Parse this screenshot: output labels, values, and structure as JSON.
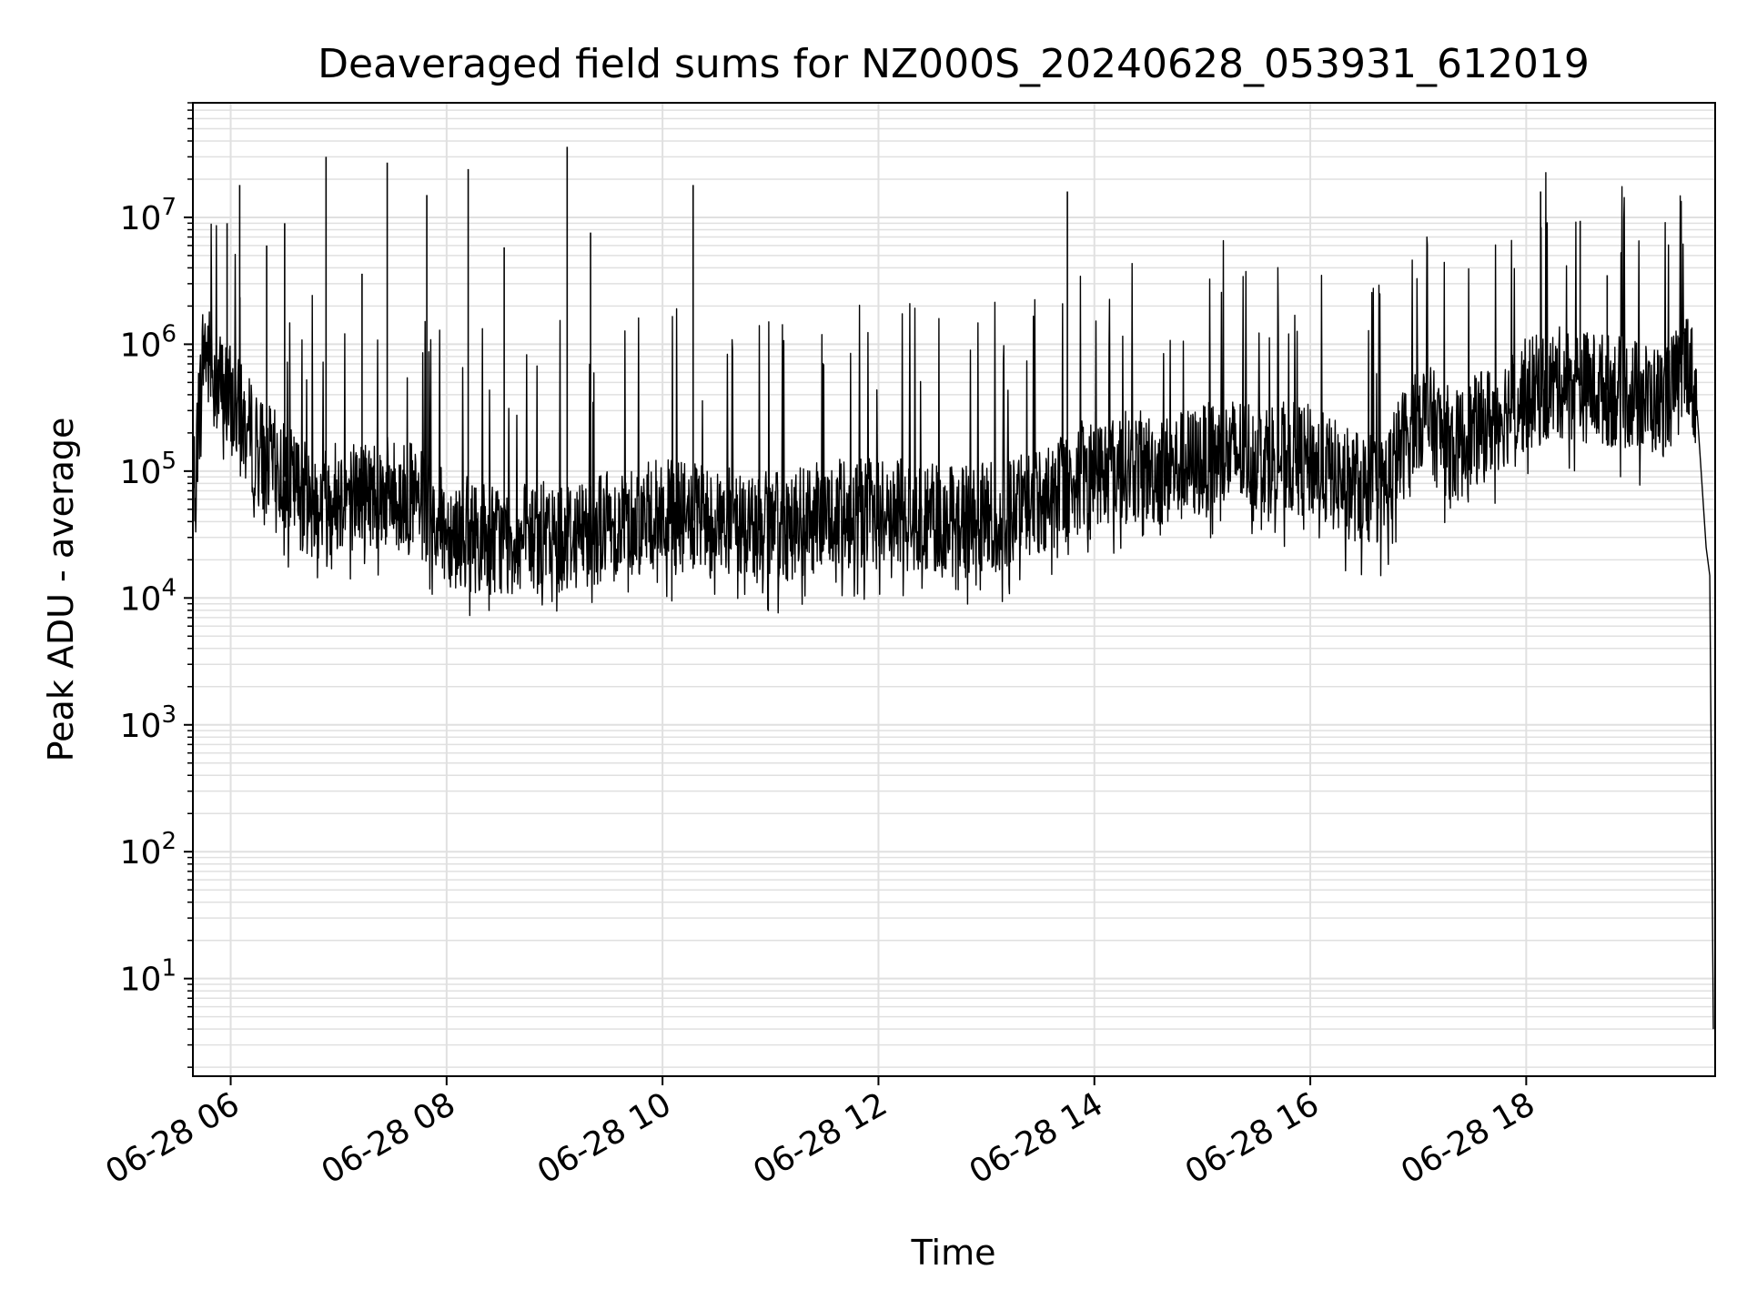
{
  "chart_data": {
    "type": "line",
    "title": "Deaveraged field sums for NZ000S_20240628_053931_612019",
    "xlabel": "Time",
    "ylabel": "Peak ADU - average",
    "x_scale": "time",
    "y_scale": "log",
    "xlim": [
      "2024-06-28 05:39",
      "2024-06-28 19:45"
    ],
    "ylim": [
      1.7,
      80000000
    ],
    "x_ticks": [
      {
        "value": "2024-06-28 06:00",
        "label": "06-28 06"
      },
      {
        "value": "2024-06-28 08:00",
        "label": "06-28 08"
      },
      {
        "value": "2024-06-28 10:00",
        "label": "06-28 10"
      },
      {
        "value": "2024-06-28 12:00",
        "label": "06-28 12"
      },
      {
        "value": "2024-06-28 14:00",
        "label": "06-28 14"
      },
      {
        "value": "2024-06-28 16:00",
        "label": "06-28 16"
      },
      {
        "value": "2024-06-28 18:00",
        "label": "06-28 18"
      }
    ],
    "y_ticks": [
      {
        "value": 10,
        "base": "10",
        "exp": "1"
      },
      {
        "value": 100,
        "base": "10",
        "exp": "2"
      },
      {
        "value": 1000,
        "base": "10",
        "exp": "3"
      },
      {
        "value": 10000,
        "base": "10",
        "exp": "4"
      },
      {
        "value": 100000,
        "base": "10",
        "exp": "5"
      },
      {
        "value": 1000000,
        "base": "10",
        "exp": "6"
      },
      {
        "value": 10000000,
        "base": "10",
        "exp": "7"
      }
    ],
    "grid": true,
    "line_color": "#000000",
    "grid_color": "#e0e0e0",
    "series": [
      {
        "x": [
          "2024-06-28 05:39",
          "2024-06-28 05:45",
          "2024-06-28 05:52",
          "2024-06-28 06:00",
          "2024-06-28 06:15",
          "2024-06-28 06:30",
          "2024-06-28 06:45",
          "2024-06-28 07:00",
          "2024-06-28 07:20",
          "2024-06-28 07:40",
          "2024-06-28 08:00",
          "2024-06-28 08:20",
          "2024-06-28 08:40",
          "2024-06-28 09:00",
          "2024-06-28 09:20",
          "2024-06-28 09:40",
          "2024-06-28 10:00",
          "2024-06-28 10:20",
          "2024-06-28 10:40",
          "2024-06-28 11:00",
          "2024-06-28 11:20",
          "2024-06-28 11:40",
          "2024-06-28 12:00",
          "2024-06-28 12:20",
          "2024-06-28 12:40",
          "2024-06-28 13:00",
          "2024-06-28 13:20",
          "2024-06-28 13:40",
          "2024-06-28 14:00",
          "2024-06-28 14:20",
          "2024-06-28 14:40",
          "2024-06-28 15:00",
          "2024-06-28 15:20",
          "2024-06-28 15:40",
          "2024-06-28 16:00",
          "2024-06-28 16:20",
          "2024-06-28 16:40",
          "2024-06-28 17:00",
          "2024-06-28 17:20",
          "2024-06-28 17:40",
          "2024-06-28 18:00",
          "2024-06-28 18:20",
          "2024-06-28 18:40",
          "2024-06-28 19:00",
          "2024-06-28 19:15",
          "2024-06-28 19:25",
          "2024-06-28 19:30",
          "2024-06-28 19:35",
          "2024-06-28 19:40",
          "2024-06-28 19:42",
          "2024-06-28 19:44"
        ],
        "y": [
          60000,
          1000000,
          500000,
          350000,
          150000,
          90000,
          55000,
          65000,
          70000,
          60000,
          35000,
          30000,
          28000,
          30000,
          35000,
          40000,
          45000,
          40000,
          38000,
          35000,
          40000,
          45000,
          48000,
          45000,
          40000,
          42000,
          50000,
          70000,
          100000,
          110000,
          100000,
          120000,
          140000,
          130000,
          120000,
          80000,
          70000,
          300000,
          150000,
          250000,
          400000,
          500000,
          450000,
          400000,
          350000,
          500000,
          800000,
          300000,
          25000,
          15000,
          4
        ]
      }
    ],
    "spikes": [
      {
        "x": "2024-06-28 05:58",
        "y": 9000000
      },
      {
        "x": "2024-06-28 06:05",
        "y": 18000000
      },
      {
        "x": "2024-06-28 06:20",
        "y": 6000000
      },
      {
        "x": "2024-06-28 06:30",
        "y": 9000000
      },
      {
        "x": "2024-06-28 06:53",
        "y": 30000000
      },
      {
        "x": "2024-06-28 07:13",
        "y": 3600000
      },
      {
        "x": "2024-06-28 07:27",
        "y": 27000000
      },
      {
        "x": "2024-06-28 07:49",
        "y": 15000000
      },
      {
        "x": "2024-06-28 08:12",
        "y": 24000000
      },
      {
        "x": "2024-06-28 08:32",
        "y": 5800000
      },
      {
        "x": "2024-06-28 09:07",
        "y": 36000000
      },
      {
        "x": "2024-06-28 09:20",
        "y": 7600000
      },
      {
        "x": "2024-06-28 10:17",
        "y": 18000000
      },
      {
        "x": "2024-06-28 13:45",
        "y": 16000000
      },
      {
        "x": "2024-06-28 18:08",
        "y": 16000000
      },
      {
        "x": "2024-06-28 18:30",
        "y": 9400000
      },
      {
        "x": "2024-06-28 18:45",
        "y": 3500000
      }
    ]
  }
}
